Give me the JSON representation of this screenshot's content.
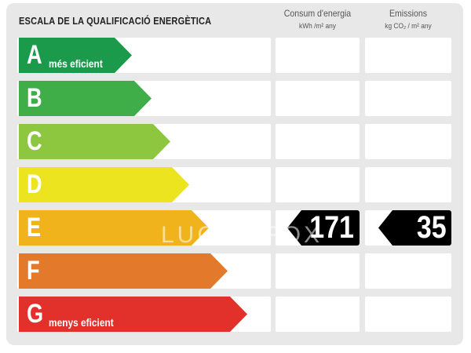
{
  "title": "ESCALA DE LA QUALIFICACIÓ ENERGÈTICA",
  "columns": [
    {
      "label": "Consum d'energia",
      "unit": "kWh /m² any"
    },
    {
      "label": "Emissions",
      "unit": "kg CO₂ / m² any"
    }
  ],
  "ratings": [
    {
      "letter": "A",
      "label": "més eficient",
      "color": "#1b9a4b"
    },
    {
      "letter": "B",
      "label": "",
      "color": "#3fae49"
    },
    {
      "letter": "C",
      "label": "",
      "color": "#8dc63f"
    },
    {
      "letter": "D",
      "label": "",
      "color": "#ece41f"
    },
    {
      "letter": "E",
      "label": "",
      "color": "#f1b31b"
    },
    {
      "letter": "F",
      "label": "",
      "color": "#e3792b"
    },
    {
      "letter": "G",
      "label": "menys eficient",
      "color": "#e2302b"
    }
  ],
  "current_rating": "E",
  "energy_consumption": "171",
  "emissions": "35",
  "watermark": "LUCAS FOX"
}
